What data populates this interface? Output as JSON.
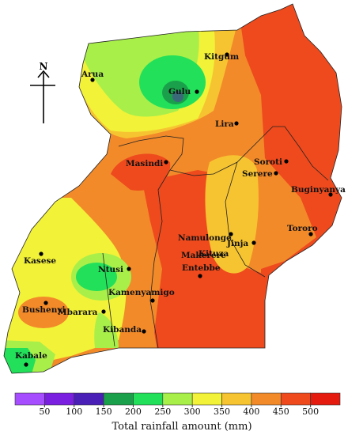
{
  "north_label": "N",
  "cities": [
    {
      "name": "Kitgum"
    },
    {
      "name": "Arua"
    },
    {
      "name": "Gulu"
    },
    {
      "name": "Lira"
    },
    {
      "name": "Soroti"
    },
    {
      "name": "Serere"
    },
    {
      "name": "Masindi"
    },
    {
      "name": "Buginyanya"
    },
    {
      "name": "Tororo"
    },
    {
      "name": "Namulonge"
    },
    {
      "name": "Jinja"
    },
    {
      "name": "Makerere"
    },
    {
      "name": "Kituza"
    },
    {
      "name": "Entebbe"
    },
    {
      "name": "Kasese"
    },
    {
      "name": "Ntusi"
    },
    {
      "name": "Kamenyamigo"
    },
    {
      "name": "Bushenyi"
    },
    {
      "name": "Mbarara"
    },
    {
      "name": "Kibanda"
    },
    {
      "name": "Kabale"
    }
  ],
  "legend": {
    "title": "Total rainfall amount (mm)",
    "ticks": [
      "50",
      "100",
      "150",
      "200",
      "250",
      "300",
      "350",
      "400",
      "450",
      "500"
    ],
    "colors": [
      "#a64dff",
      "#7a1fe0",
      "#4a1fb8",
      "#1aa04a",
      "#22e05a",
      "#a8ef4a",
      "#f2f238",
      "#f7c431",
      "#f28a2a",
      "#ee4a1d",
      "#e51b10"
    ]
  }
}
